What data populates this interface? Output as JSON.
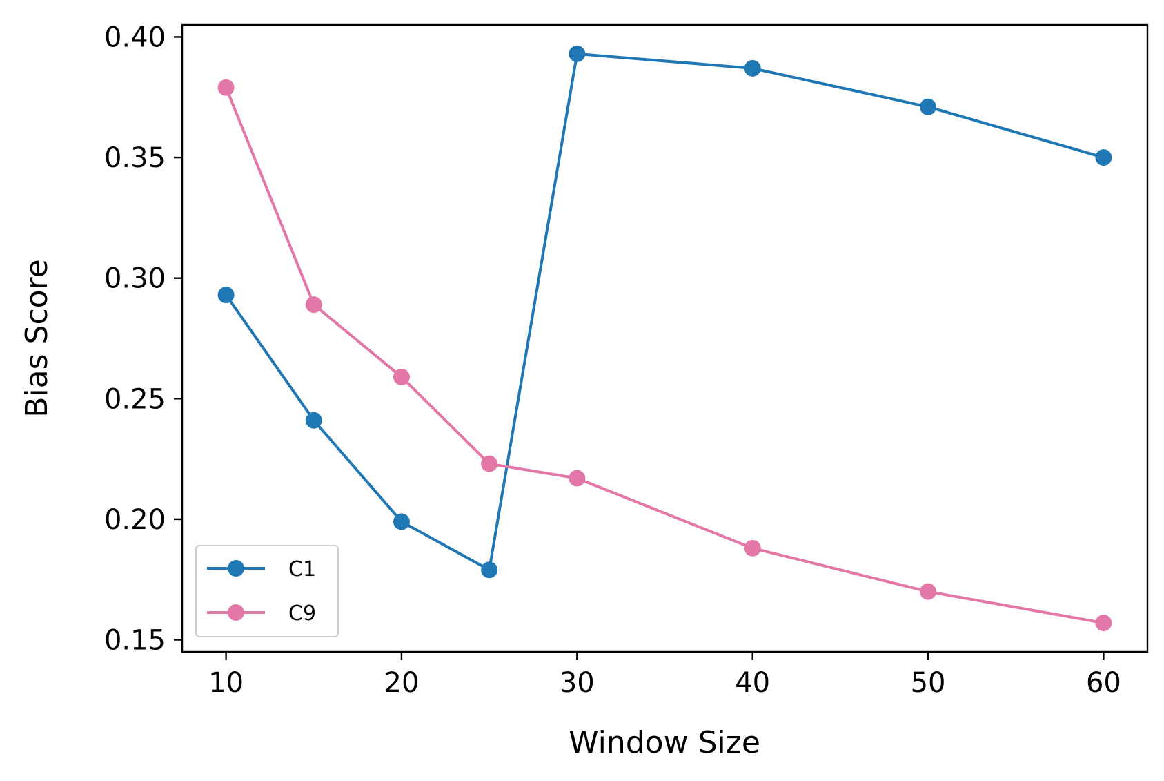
{
  "chart_data": {
    "type": "line",
    "title": "",
    "xlabel": "Window Size",
    "ylabel": "Bias Score",
    "x": [
      10,
      15,
      20,
      25,
      30,
      40,
      50,
      60
    ],
    "xlim": [
      7.5,
      62.5
    ],
    "ylim": [
      0.145,
      0.405
    ],
    "xticks": [
      10,
      20,
      30,
      40,
      50,
      60
    ],
    "xtick_labels": [
      "10",
      "20",
      "30",
      "40",
      "50",
      "60"
    ],
    "yticks": [
      0.15,
      0.2,
      0.25,
      0.3,
      0.35,
      0.4
    ],
    "ytick_labels": [
      "0.15",
      "0.20",
      "0.25",
      "0.30",
      "0.35",
      "0.40"
    ],
    "grid": false,
    "legend_position": "lower-left",
    "series": [
      {
        "name": "C1",
        "color": "#1f77b4",
        "marker": "circle",
        "values": [
          0.293,
          0.241,
          0.199,
          0.179,
          0.393,
          0.387,
          0.371,
          0.35
        ]
      },
      {
        "name": "C9",
        "color": "#e377a8",
        "marker": "circle",
        "values": [
          0.379,
          0.289,
          0.259,
          0.223,
          0.217,
          0.188,
          0.17,
          0.157
        ]
      }
    ]
  }
}
